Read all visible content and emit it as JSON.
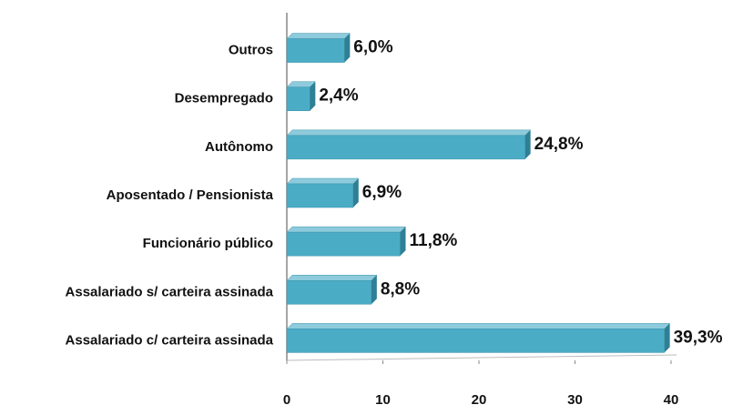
{
  "chart_data": {
    "type": "bar",
    "orientation": "horizontal",
    "categories": [
      "Outros",
      "Desempregado",
      "Autônomo",
      "Aposentado / Pensionista",
      "Funcionário público",
      "Assalariado s/ carteira assinada",
      "Assalariado c/ carteira assinada"
    ],
    "values": [
      6.0,
      2.4,
      24.8,
      6.9,
      11.8,
      8.8,
      39.3
    ],
    "value_labels": [
      "6,0%",
      "2,4%",
      "24,8%",
      "6,9%",
      "11,8%",
      "8,8%",
      "39,3%"
    ],
    "color": "#4bacc6",
    "xlim": [
      0,
      40
    ],
    "xticks": [
      0,
      10,
      20,
      30,
      40
    ],
    "grid": false
  }
}
